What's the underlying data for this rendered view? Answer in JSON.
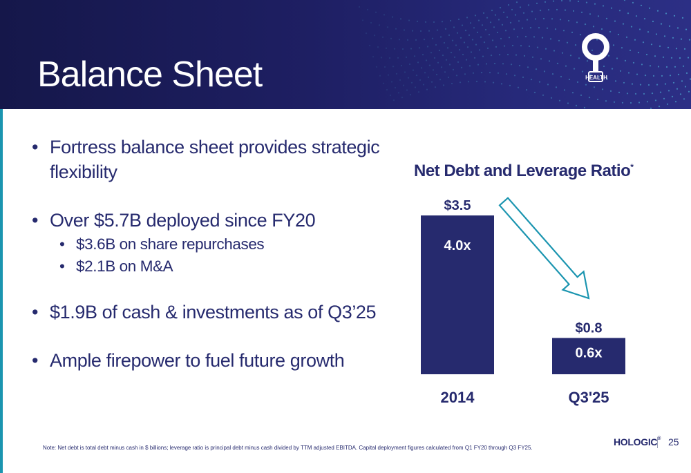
{
  "slide": {
    "title": "Balance Sheet",
    "brand_text": "HEALTH",
    "company_logo": "HOLOGIC",
    "company_logo_mark": "®",
    "page_number": "25",
    "footnote": "Note: Net debt is total debt minus cash in $ billions; leverage ratio is principal debt minus cash divided by TTM adjusted EBITDA. Capital deployment figures calculated from Q1 FY20 through Q3 FY25."
  },
  "bullets": [
    {
      "text": "Fortress balance sheet provides strategic flexibility",
      "level": 1
    },
    {
      "text": "Over $5.7B deployed since FY20",
      "level": 1
    },
    {
      "text": "$3.6B on share repurchases",
      "level": 2
    },
    {
      "text": "$2.1B on M&A",
      "level": 2
    },
    {
      "text": "$1.9B of cash & investments as of Q3’25",
      "level": 1
    },
    {
      "text": "Ample firepower to fuel future growth",
      "level": 1
    }
  ],
  "chart_data": {
    "type": "bar",
    "title": "Net Debt and Leverage Ratio",
    "title_mark": "*",
    "categories": [
      "2014",
      "Q3'25"
    ],
    "series": [
      {
        "values": [
          3.5,
          0.8
        ],
        "value_labels": [
          "$3.5",
          "$0.8"
        ],
        "inner_labels": [
          "4.0x",
          "0.6x"
        ]
      }
    ],
    "ylim": [
      0,
      3.5
    ],
    "xlabel": "",
    "ylabel": "",
    "grid": false,
    "bar_color": "#262a6e",
    "arrow_color": "#1b95b0",
    "annotation": "downward arrow from 2014 bar to Q3'25 bar"
  },
  "colors": {
    "navy": "#262a6e",
    "teal": "#1b95b0",
    "header_dark": "#15174a"
  },
  "icons": {
    "brand": "health-keyhole-icon"
  }
}
